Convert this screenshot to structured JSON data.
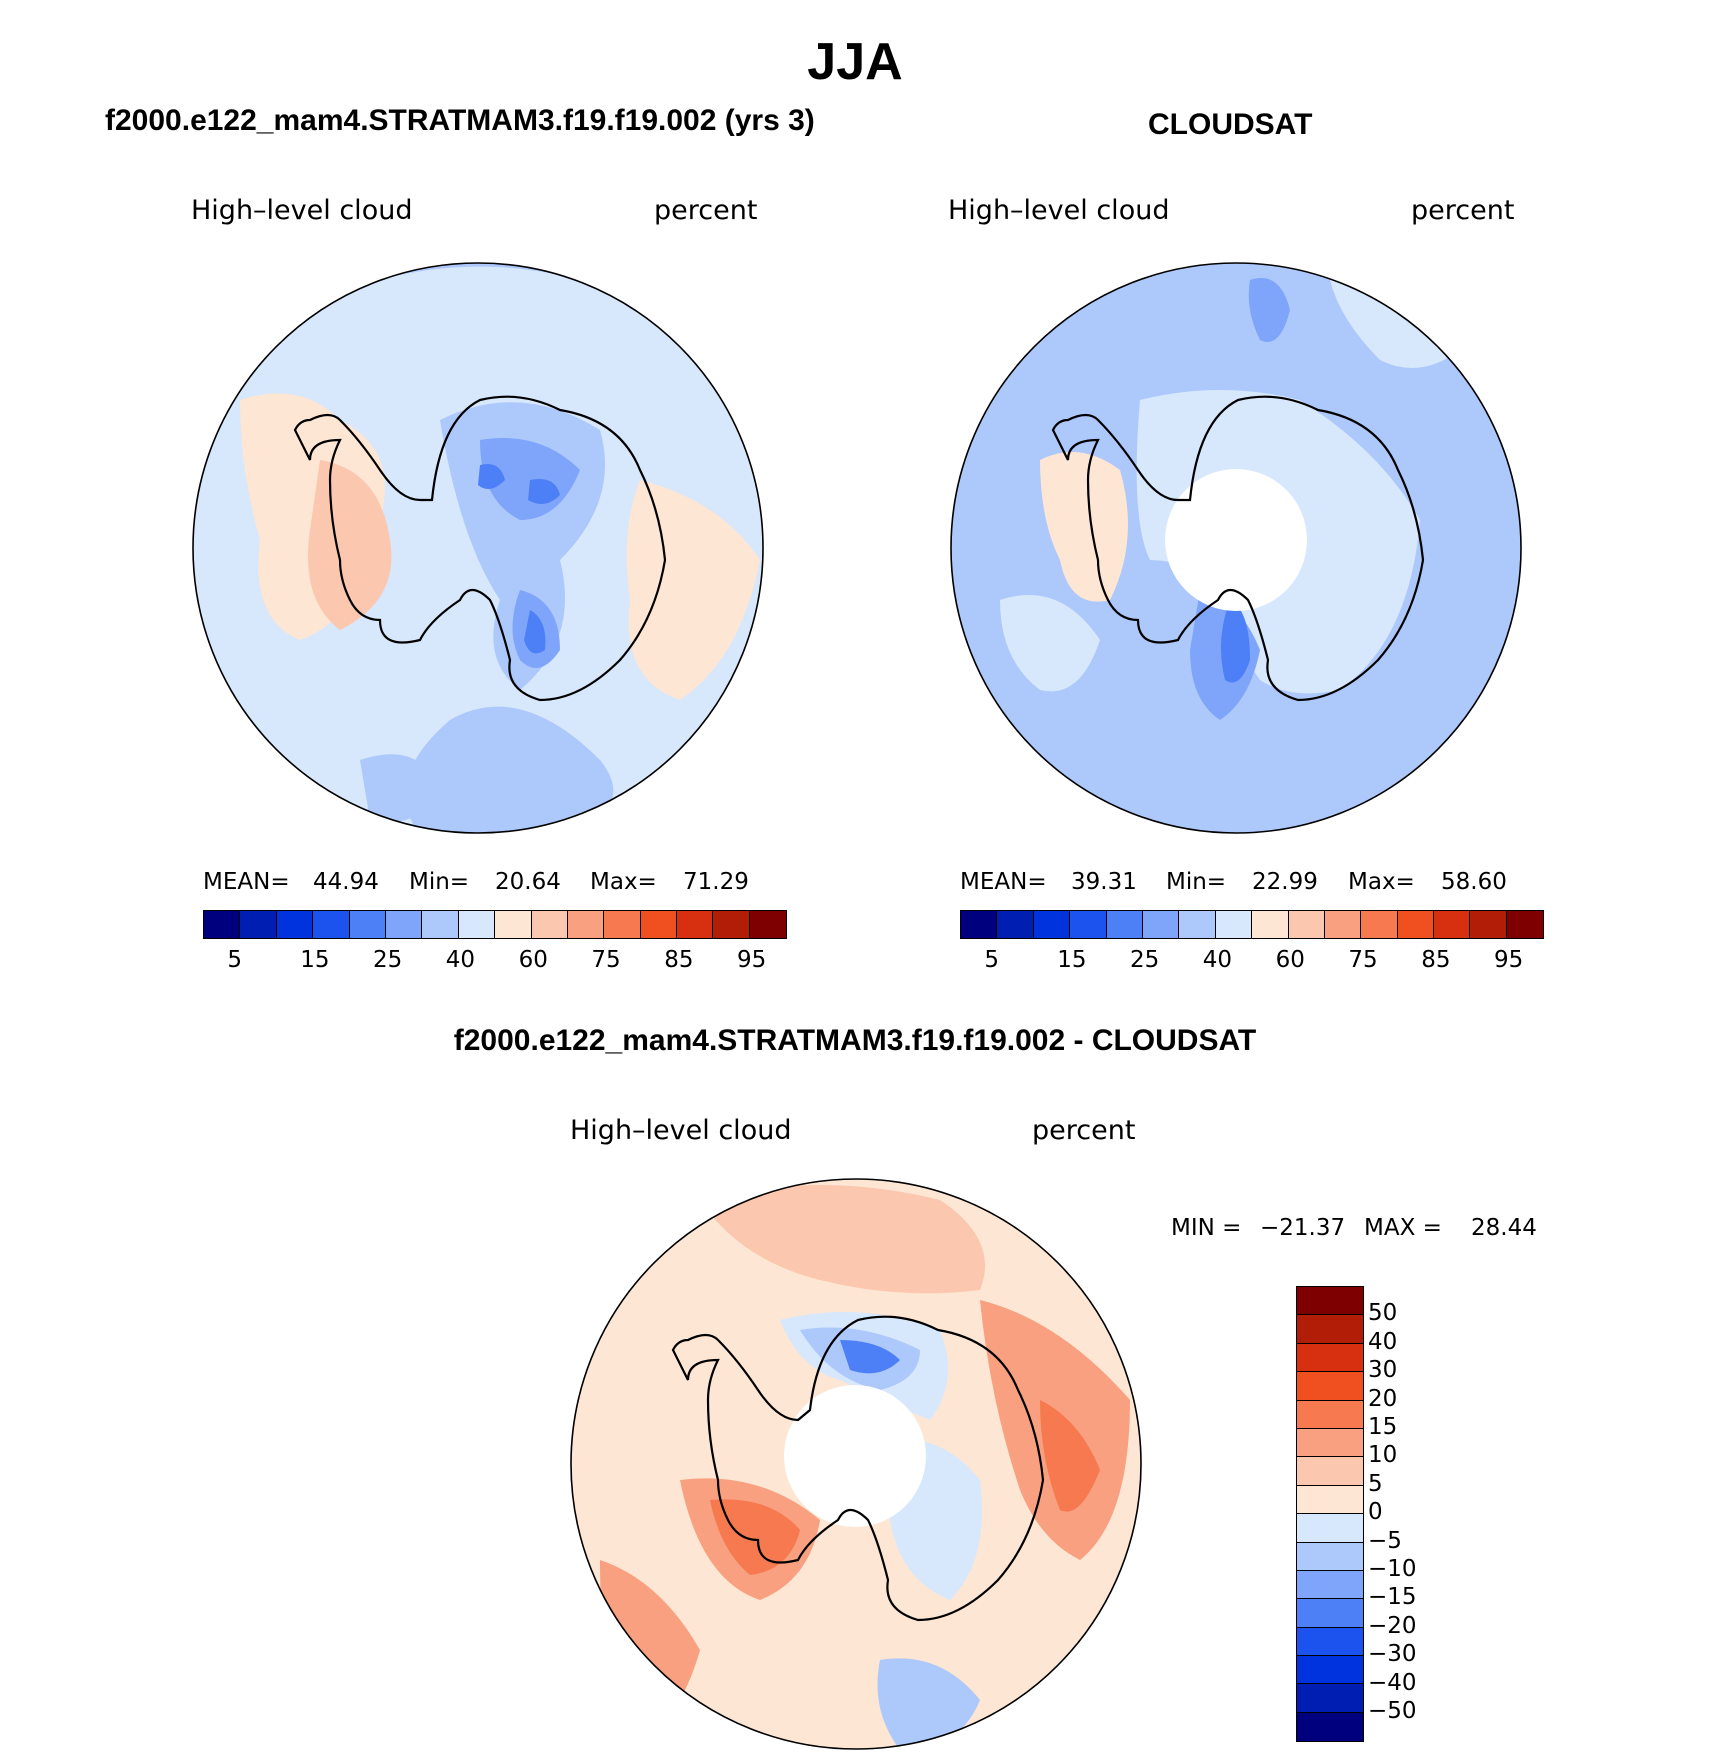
{
  "figure": {
    "title": "JJA",
    "panel1": {
      "title": "f2000.e122_mam4.STRATMAM3.f19.f19.002 (yrs 3)",
      "variable": "High–level cloud",
      "units": "percent",
      "stats": {
        "mean_label": "MEAN=",
        "mean": "44.94",
        "min_label": "Min=",
        "min": "20.64",
        "max_label": "Max=",
        "max": "71.29"
      }
    },
    "panel2": {
      "title": "CLOUDSAT",
      "variable": "High–level cloud",
      "units": "percent",
      "stats": {
        "mean_label": "MEAN=",
        "mean": "39.31",
        "min_label": "Min=",
        "min": "22.99",
        "max_label": "Max=",
        "max": "58.60"
      }
    },
    "panel3": {
      "title": "f2000.e122_mam4.STRATMAM3.f19.f19.002 - CLOUDSAT",
      "variable": "High–level cloud",
      "units": "percent",
      "stats": {
        "min_label": "MIN =",
        "min": "−21.37",
        "max_label": "MAX =",
        "max": "28.44"
      }
    }
  },
  "colors": {
    "abs_scale": [
      "#00007f",
      "#001fb2",
      "#0033dd",
      "#1c52ee",
      "#4d7ff6",
      "#7fa5fa",
      "#adc8fb",
      "#d7e7fc",
      "#fde6d3",
      "#fbc7ae",
      "#f8a07f",
      "#f6794f",
      "#f0501f",
      "#d63010",
      "#b21d08",
      "#7f0000"
    ],
    "diff_scale": [
      "#00007f",
      "#001fb2",
      "#0033dd",
      "#1c52ee",
      "#4d7ff6",
      "#7fa5fa",
      "#adc8fb",
      "#d7e7fc",
      "#fde6d3",
      "#fbc7ae",
      "#f8a07f",
      "#f6794f",
      "#f0501f",
      "#d63010",
      "#b21d08",
      "#7f0000"
    ],
    "coast": "#000000"
  },
  "chart_data": [
    {
      "type": "heatmap",
      "projection": "south polar stereographic",
      "title": "f2000.e122_mam4.STRATMAM3.f19.f19.002 (yrs 3)",
      "field": "High–level cloud",
      "units": "percent",
      "mean": 44.94,
      "min": 20.64,
      "max": 71.29,
      "colorbar_ticks": [
        "5",
        "15",
        "25",
        "40",
        "60",
        "75",
        "85",
        "95"
      ],
      "colorbar_levels": [
        5,
        10,
        15,
        20,
        25,
        30,
        35,
        40,
        50,
        60,
        65,
        70,
        75,
        80,
        85,
        90,
        95
      ]
    },
    {
      "type": "heatmap",
      "projection": "south polar stereographic",
      "title": "CLOUDSAT",
      "field": "High–level cloud",
      "units": "percent",
      "mean": 39.31,
      "min": 22.99,
      "max": 58.6,
      "colorbar_ticks": [
        "5",
        "15",
        "25",
        "40",
        "60",
        "75",
        "85",
        "95"
      ],
      "colorbar_levels": [
        5,
        10,
        15,
        20,
        25,
        30,
        35,
        40,
        50,
        60,
        65,
        70,
        75,
        80,
        85,
        90,
        95
      ]
    },
    {
      "type": "heatmap",
      "projection": "south polar stereographic",
      "title": "f2000.e122_mam4.STRATMAM3.f19.f19.002 - CLOUDSAT",
      "field": "High–level cloud",
      "units": "percent",
      "min": -21.37,
      "max": 28.44,
      "colorbar_ticks": [
        "50",
        "40",
        "30",
        "20",
        "15",
        "10",
        "5",
        "0",
        "−5",
        "−10",
        "−15",
        "−20",
        "−30",
        "−40",
        "−50"
      ],
      "colorbar_levels": [
        -50,
        -40,
        -30,
        -20,
        -15,
        -10,
        -5,
        0,
        5,
        10,
        15,
        20,
        30,
        40,
        50
      ]
    }
  ]
}
